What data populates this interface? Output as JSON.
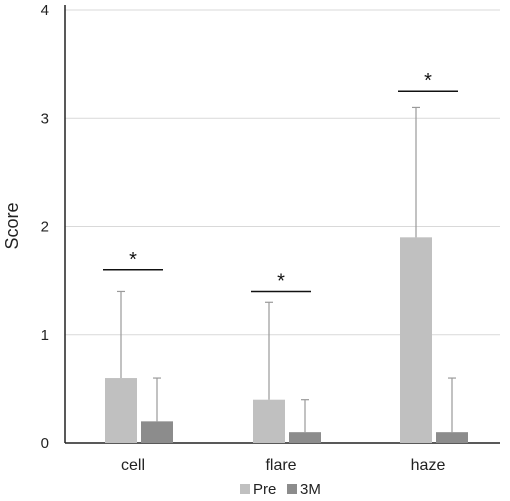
{
  "chart_data": {
    "type": "bar",
    "categories": [
      "cell",
      "flare",
      "haze"
    ],
    "series": [
      {
        "name": "Pre",
        "values": [
          0.6,
          0.4,
          1.9
        ],
        "error": [
          0.8,
          0.9,
          1.2
        ],
        "color": "#c0c0c0"
      },
      {
        "name": "3M",
        "values": [
          0.2,
          0.1,
          0.1
        ],
        "error": [
          0.4,
          0.3,
          0.5
        ],
        "color": "#8c8c8c"
      }
    ],
    "ylabel": "Score",
    "ylim": [
      0,
      4
    ],
    "yticks": [
      0,
      1,
      2,
      3,
      4
    ],
    "grid": true,
    "legend_position": "bottom",
    "significance": [
      {
        "category": "cell",
        "label": "*",
        "level": 1.6
      },
      {
        "category": "flare",
        "label": "*",
        "level": 1.4
      },
      {
        "category": "haze",
        "label": "*",
        "level": 3.25
      }
    ]
  }
}
